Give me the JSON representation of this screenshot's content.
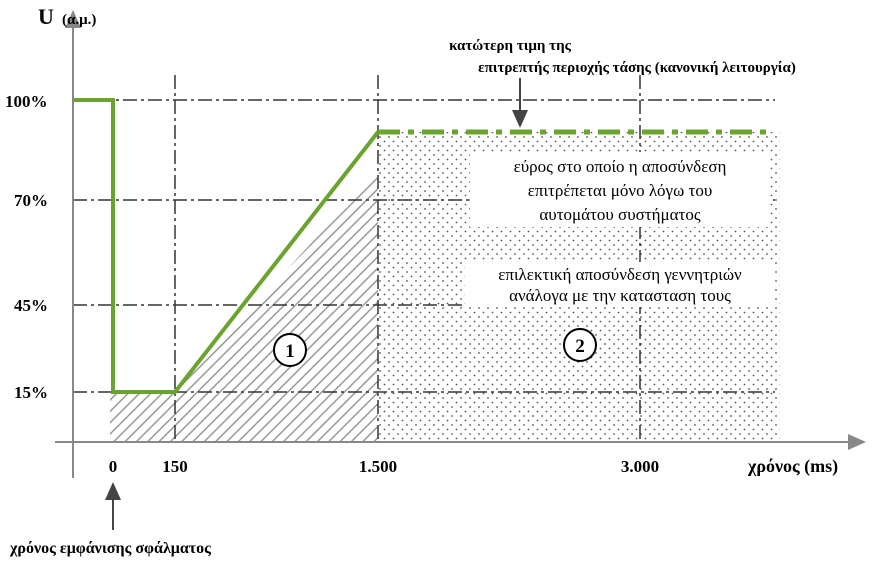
{
  "axis": {
    "y_title": "U",
    "y_unit": "(α.μ.)",
    "x_title": "χρόνος (ms)",
    "y_ticks": [
      "100%",
      "70%",
      "45%",
      "15%"
    ],
    "x_ticks": [
      "0",
      "150",
      "1.500",
      "3.000"
    ]
  },
  "annotations": {
    "top_line1": "κατώτερη τιμη της",
    "top_line2": "επιτρεπτής περιοχής τάσης (κανονική λειτουργία)",
    "fault": "χρόνος εμφάνισης σφάλματος",
    "region2_line1": "εύρος στο οποίο η αποσύνδεση",
    "region2_line2": "επιτρέπεται μόνο  λόγω του",
    "region2_line3": "αυτομάτου συστήματος",
    "region2b_line1": "επιλεκτική αποσύνδεση γεννητριών",
    "region2b_line2": "ανάλογα με την κατασταση τους",
    "zone1": "1",
    "zone2": "2"
  }
}
